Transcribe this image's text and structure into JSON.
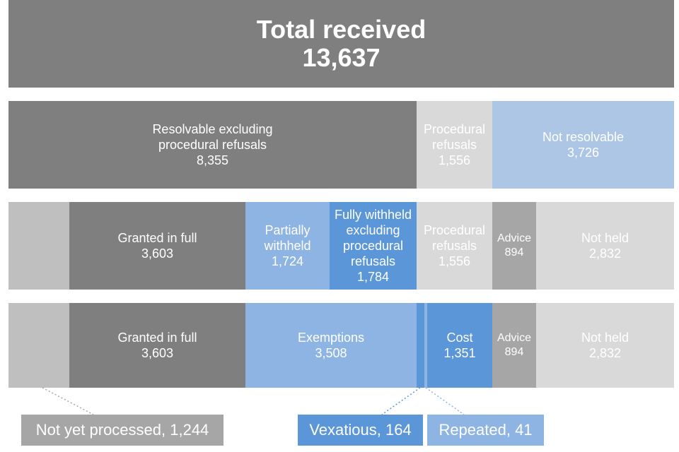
{
  "total": {
    "label": "Total received",
    "value": "13,637"
  },
  "row1": {
    "resolvable": {
      "label_line1": "Resolvable excluding",
      "label_line2": "procedural refusals",
      "value": "8,355"
    },
    "procedural": {
      "label_line1": "Procedural",
      "label_line2": "refusals",
      "value": "1,556"
    },
    "not_resolvable": {
      "label": "Not resolvable",
      "value": "3,726"
    }
  },
  "row2": {
    "granted": {
      "label": "Granted in full",
      "value": "3,603"
    },
    "partial": {
      "label_line1": "Partially",
      "label_line2": "withheld",
      "value": "1,724"
    },
    "fully_withheld": {
      "label_line1": "Fully withheld",
      "label_line2": "excluding",
      "label_line3": "procedural",
      "label_line4": "refusals",
      "value": "1,784"
    },
    "procedural": {
      "label_line1": "Procedural",
      "label_line2": "refusals",
      "value": "1,556"
    },
    "advice": {
      "label": "Advice",
      "value": "894"
    },
    "not_held": {
      "label": "Not held",
      "value": "2,832"
    }
  },
  "row3": {
    "granted": {
      "label": "Granted in full",
      "value": "3,603"
    },
    "exemptions": {
      "label": "Exemptions",
      "value": "3,508"
    },
    "cost": {
      "label": "Cost",
      "value": "1,351"
    },
    "advice": {
      "label": "Advice",
      "value": "894"
    },
    "not_held": {
      "label": "Not held",
      "value": "2,832"
    }
  },
  "callouts": {
    "not_processed": "Not yet processed, 1,244",
    "vexatious": "Vexatious, 164",
    "repeated": "Repeated, 41"
  },
  "colors": {
    "dark_grey": "#7f7f7f",
    "light_grey": "#d9d9d9",
    "mid_grey": "#bfbfbf",
    "advice_grey": "#a6a6a6",
    "light_blue": "#adc6e6",
    "mid_blue": "#8db4e2",
    "strong_blue": "#5b96d8"
  }
}
